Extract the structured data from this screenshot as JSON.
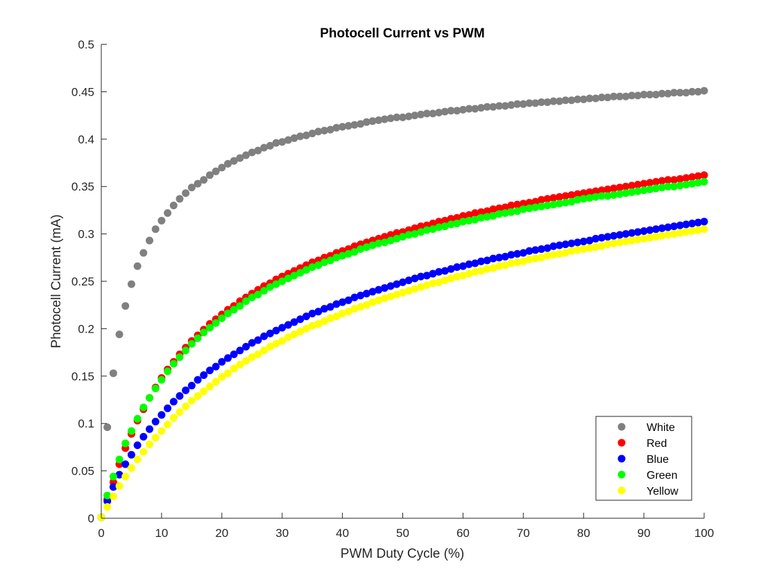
{
  "chart_data": {
    "type": "scatter",
    "title": "Photocell Current vs PWM",
    "xlabel": "PWM Duty Cycle (%)",
    "ylabel": "Photocell Current (mA)",
    "xlim": [
      0,
      100
    ],
    "ylim": [
      0,
      0.5
    ],
    "xticks": [
      0,
      10,
      20,
      30,
      40,
      50,
      60,
      70,
      80,
      90,
      100
    ],
    "xtick_labels": [
      "0",
      "10",
      "20",
      "30",
      "40",
      "50",
      "60",
      "70",
      "80",
      "90",
      "100"
    ],
    "yticks": [
      0,
      0.05,
      0.1,
      0.15,
      0.2,
      0.25,
      0.3,
      0.35,
      0.4,
      0.45,
      0.5
    ],
    "ytick_labels": [
      "0",
      "0.05",
      "0.1",
      "0.15",
      "0.2",
      "0.25",
      "0.3",
      "0.35",
      "0.4",
      "0.45",
      "0.5"
    ],
    "grid": false,
    "legend_position": "bottom-right",
    "x": [
      0,
      1,
      2,
      3,
      4,
      5,
      6,
      7,
      8,
      9,
      10,
      11,
      12,
      13,
      14,
      15,
      16,
      17,
      18,
      19,
      20,
      21,
      22,
      23,
      24,
      25,
      26,
      27,
      28,
      29,
      30,
      31,
      32,
      33,
      34,
      35,
      36,
      37,
      38,
      39,
      40,
      41,
      42,
      43,
      44,
      45,
      46,
      47,
      48,
      49,
      50,
      51,
      52,
      53,
      54,
      55,
      56,
      57,
      58,
      59,
      60,
      61,
      62,
      63,
      64,
      65,
      66,
      67,
      68,
      69,
      70,
      71,
      72,
      73,
      74,
      75,
      76,
      77,
      78,
      79,
      80,
      81,
      82,
      83,
      84,
      85,
      86,
      87,
      88,
      89,
      90,
      91,
      92,
      93,
      94,
      95,
      96,
      97,
      98,
      99,
      100
    ],
    "series": [
      {
        "name": "White",
        "color": "#808080",
        "values": [
          0.001,
          0.096,
          0.153,
          0.194,
          0.224,
          0.247,
          0.266,
          0.28,
          0.293,
          0.305,
          0.314,
          0.322,
          0.33,
          0.337,
          0.343,
          0.349,
          0.353,
          0.357,
          0.362,
          0.366,
          0.37,
          0.374,
          0.377,
          0.38,
          0.383,
          0.386,
          0.388,
          0.391,
          0.393,
          0.396,
          0.397,
          0.399,
          0.401,
          0.403,
          0.404,
          0.406,
          0.408,
          0.409,
          0.41,
          0.412,
          0.413,
          0.414,
          0.415,
          0.416,
          0.418,
          0.419,
          0.42,
          0.421,
          0.422,
          0.423,
          0.423,
          0.424,
          0.425,
          0.426,
          0.427,
          0.427,
          0.428,
          0.429,
          0.43,
          0.43,
          0.431,
          0.432,
          0.432,
          0.433,
          0.434,
          0.434,
          0.435,
          0.435,
          0.436,
          0.437,
          0.437,
          0.438,
          0.438,
          0.439,
          0.439,
          0.44,
          0.44,
          0.441,
          0.441,
          0.442,
          0.442,
          0.443,
          0.443,
          0.444,
          0.444,
          0.445,
          0.445,
          0.445,
          0.446,
          0.446,
          0.447,
          0.447,
          0.447,
          0.448,
          0.448,
          0.449,
          0.449,
          0.449,
          0.45,
          0.45,
          0.451
        ]
      },
      {
        "name": "Red",
        "color": "#ff0000",
        "values": [
          0.001,
          0.02,
          0.038,
          0.057,
          0.074,
          0.089,
          0.103,
          0.115,
          0.127,
          0.138,
          0.148,
          0.157,
          0.165,
          0.173,
          0.18,
          0.187,
          0.193,
          0.199,
          0.205,
          0.21,
          0.215,
          0.22,
          0.224,
          0.229,
          0.233,
          0.237,
          0.241,
          0.245,
          0.248,
          0.252,
          0.255,
          0.258,
          0.261,
          0.264,
          0.267,
          0.27,
          0.272,
          0.275,
          0.277,
          0.28,
          0.282,
          0.284,
          0.287,
          0.289,
          0.291,
          0.293,
          0.295,
          0.297,
          0.299,
          0.301,
          0.302,
          0.304,
          0.306,
          0.308,
          0.309,
          0.311,
          0.313,
          0.314,
          0.316,
          0.317,
          0.319,
          0.32,
          0.322,
          0.323,
          0.324,
          0.326,
          0.327,
          0.328,
          0.33,
          0.331,
          0.332,
          0.333,
          0.334,
          0.336,
          0.337,
          0.338,
          0.339,
          0.34,
          0.341,
          0.342,
          0.343,
          0.344,
          0.345,
          0.346,
          0.347,
          0.348,
          0.349,
          0.35,
          0.351,
          0.352,
          0.353,
          0.354,
          0.355,
          0.356,
          0.357,
          0.357,
          0.358,
          0.359,
          0.36,
          0.361,
          0.362
        ]
      },
      {
        "name": "Blue",
        "color": "#0000ff",
        "values": [
          0.001,
          0.018,
          0.033,
          0.046,
          0.057,
          0.067,
          0.077,
          0.086,
          0.094,
          0.102,
          0.109,
          0.116,
          0.123,
          0.129,
          0.135,
          0.14,
          0.146,
          0.151,
          0.156,
          0.16,
          0.165,
          0.169,
          0.173,
          0.177,
          0.181,
          0.185,
          0.188,
          0.192,
          0.195,
          0.198,
          0.201,
          0.204,
          0.207,
          0.21,
          0.213,
          0.216,
          0.218,
          0.221,
          0.223,
          0.226,
          0.228,
          0.23,
          0.233,
          0.235,
          0.237,
          0.239,
          0.241,
          0.243,
          0.245,
          0.247,
          0.249,
          0.251,
          0.253,
          0.255,
          0.256,
          0.258,
          0.26,
          0.261,
          0.263,
          0.265,
          0.266,
          0.268,
          0.269,
          0.271,
          0.272,
          0.274,
          0.275,
          0.276,
          0.278,
          0.279,
          0.28,
          0.282,
          0.283,
          0.284,
          0.285,
          0.287,
          0.288,
          0.289,
          0.29,
          0.291,
          0.292,
          0.293,
          0.295,
          0.296,
          0.297,
          0.298,
          0.299,
          0.3,
          0.301,
          0.302,
          0.303,
          0.304,
          0.305,
          0.306,
          0.307,
          0.308,
          0.309,
          0.31,
          0.311,
          0.312,
          0.313
        ]
      },
      {
        "name": "Green",
        "color": "#00ff00",
        "values": [
          0.001,
          0.024,
          0.044,
          0.062,
          0.079,
          0.092,
          0.105,
          0.117,
          0.127,
          0.137,
          0.146,
          0.155,
          0.163,
          0.17,
          0.177,
          0.184,
          0.19,
          0.196,
          0.201,
          0.206,
          0.211,
          0.216,
          0.22,
          0.224,
          0.229,
          0.233,
          0.236,
          0.24,
          0.244,
          0.247,
          0.25,
          0.253,
          0.256,
          0.259,
          0.262,
          0.265,
          0.267,
          0.27,
          0.272,
          0.275,
          0.277,
          0.279,
          0.281,
          0.284,
          0.286,
          0.288,
          0.29,
          0.291,
          0.293,
          0.295,
          0.297,
          0.299,
          0.3,
          0.302,
          0.304,
          0.305,
          0.307,
          0.308,
          0.31,
          0.311,
          0.313,
          0.314,
          0.315,
          0.317,
          0.318,
          0.319,
          0.321,
          0.322,
          0.323,
          0.324,
          0.326,
          0.327,
          0.328,
          0.329,
          0.33,
          0.331,
          0.332,
          0.333,
          0.334,
          0.336,
          0.337,
          0.338,
          0.339,
          0.34,
          0.34,
          0.341,
          0.342,
          0.343,
          0.344,
          0.345,
          0.346,
          0.347,
          0.348,
          0.349,
          0.35,
          0.35,
          0.351,
          0.352,
          0.353,
          0.354,
          0.355
        ]
      },
      {
        "name": "Yellow",
        "color": "#ffff00",
        "values": [
          0.001,
          0.012,
          0.023,
          0.034,
          0.044,
          0.053,
          0.062,
          0.07,
          0.078,
          0.085,
          0.092,
          0.099,
          0.106,
          0.112,
          0.118,
          0.124,
          0.129,
          0.134,
          0.139,
          0.144,
          0.149,
          0.153,
          0.158,
          0.162,
          0.166,
          0.17,
          0.173,
          0.177,
          0.181,
          0.184,
          0.187,
          0.191,
          0.194,
          0.197,
          0.2,
          0.203,
          0.205,
          0.208,
          0.211,
          0.213,
          0.216,
          0.218,
          0.221,
          0.223,
          0.225,
          0.228,
          0.23,
          0.232,
          0.234,
          0.236,
          0.238,
          0.24,
          0.242,
          0.244,
          0.246,
          0.248,
          0.249,
          0.251,
          0.253,
          0.255,
          0.256,
          0.258,
          0.26,
          0.261,
          0.263,
          0.264,
          0.266,
          0.267,
          0.269,
          0.27,
          0.271,
          0.273,
          0.274,
          0.275,
          0.277,
          0.278,
          0.279,
          0.28,
          0.282,
          0.283,
          0.284,
          0.285,
          0.286,
          0.287,
          0.289,
          0.29,
          0.291,
          0.292,
          0.293,
          0.294,
          0.295,
          0.296,
          0.297,
          0.298,
          0.299,
          0.3,
          0.301,
          0.302,
          0.303,
          0.304,
          0.305
        ]
      }
    ]
  }
}
